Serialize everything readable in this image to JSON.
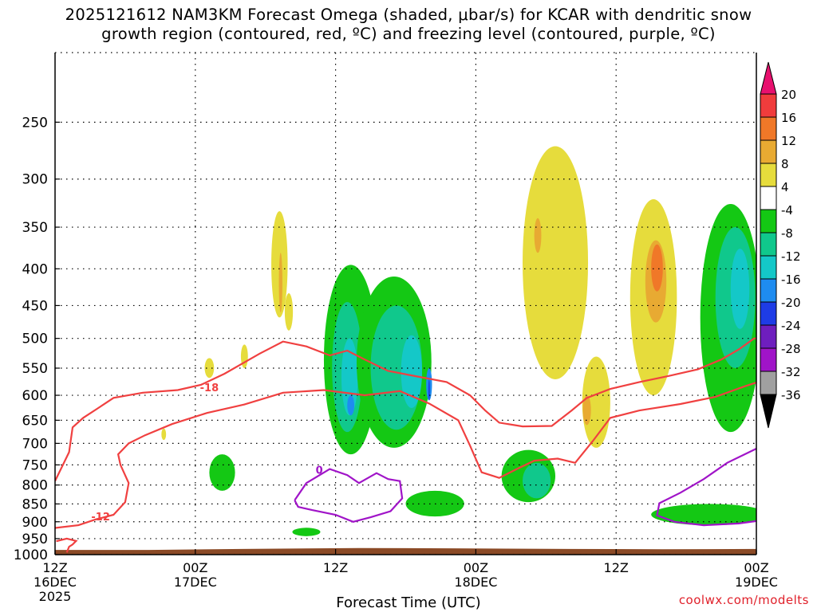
{
  "title": {
    "line1": "2025121612 NAM3KM Forecast Omega (shaded, μbar/s) for KCAR with dendritic snow",
    "line2": "growth region (contoured, red, ºC) and freezing level (contoured, purple, ºC)"
  },
  "credit": "coolwx.com/modelts",
  "chart_data": {
    "type": "heatmap",
    "xlabel": "Forecast Time (UTC)",
    "ylabel": "",
    "x_ticks": [
      {
        "hour": 0,
        "lines": [
          "12Z",
          "16DEC",
          "2025"
        ]
      },
      {
        "hour": 12,
        "lines": [
          "00Z",
          "17DEC"
        ]
      },
      {
        "hour": 24,
        "lines": [
          "12Z"
        ]
      },
      {
        "hour": 36,
        "lines": [
          "00Z",
          "18DEC"
        ]
      },
      {
        "hour": 48,
        "lines": [
          "12Z"
        ]
      },
      {
        "hour": 60,
        "lines": [
          "00Z",
          "19DEC"
        ]
      }
    ],
    "xlim": [
      0,
      60
    ],
    "y_ticks": [
      250,
      300,
      350,
      400,
      450,
      500,
      550,
      600,
      650,
      700,
      750,
      800,
      850,
      900,
      950,
      1000
    ],
    "ylim": [
      200,
      1000
    ],
    "y_scale": "log-pressure",
    "grid": true,
    "colorbar": {
      "labels": [
        "20",
        "16",
        "12",
        "8",
        "4",
        "-4",
        "-8",
        "-12",
        "-16",
        "-20",
        "-24",
        "-28",
        "-32",
        "-36"
      ],
      "bins": [
        {
          "lo": 20,
          "hi": null,
          "color": "#e8106e"
        },
        {
          "lo": 16,
          "hi": 20,
          "color": "#f03c3c"
        },
        {
          "lo": 12,
          "hi": 16,
          "color": "#f07828"
        },
        {
          "lo": 8,
          "hi": 12,
          "color": "#e8aa32"
        },
        {
          "lo": 4,
          "hi": 8,
          "color": "#e6dc3c"
        },
        {
          "lo": -4,
          "hi": 4,
          "color": "#ffffff"
        },
        {
          "lo": -8,
          "hi": -4,
          "color": "#14c814"
        },
        {
          "lo": -12,
          "hi": -8,
          "color": "#10c88c"
        },
        {
          "lo": -16,
          "hi": -12,
          "color": "#14c8c8"
        },
        {
          "lo": -20,
          "hi": -16,
          "color": "#1e8cf0"
        },
        {
          "lo": -24,
          "hi": -20,
          "color": "#1e3ce6"
        },
        {
          "lo": -28,
          "hi": -24,
          "color": "#6e1ebe"
        },
        {
          "lo": -32,
          "hi": -28,
          "color": "#a014c8"
        },
        {
          "lo": -36,
          "hi": -32,
          "color": "#a0a0a0"
        },
        {
          "lo": null,
          "hi": -36,
          "color": "#000000"
        }
      ]
    },
    "omega_features": [
      {
        "color": "#e6dc3c",
        "t": 19.2,
        "p": 400,
        "dt": 0.7,
        "dp": 135
      },
      {
        "color": "#e8aa32",
        "t": 19.3,
        "p": 420,
        "dt": 0.15,
        "dp": 80
      },
      {
        "color": "#e6dc3c",
        "t": 20.0,
        "p": 460,
        "dt": 0.35,
        "dp": 55
      },
      {
        "color": "#e6dc3c",
        "t": 16.2,
        "p": 530,
        "dt": 0.3,
        "dp": 40
      },
      {
        "color": "#e6dc3c",
        "t": 13.2,
        "p": 550,
        "dt": 0.4,
        "dp": 35
      },
      {
        "color": "#e6dc3c",
        "t": 9.3,
        "p": 680,
        "dt": 0.2,
        "dp": 25
      },
      {
        "color": "#14c814",
        "t": 14.3,
        "p": 770,
        "dt": 1.1,
        "dp": 90
      },
      {
        "color": "#14c814",
        "t": 21.5,
        "p": 930,
        "dt": 1.2,
        "dp": 25
      },
      {
        "color": "#14c814",
        "t": 25.3,
        "p": 560,
        "dt": 2.3,
        "dp": 330
      },
      {
        "color": "#10c88c",
        "t": 25.0,
        "p": 560,
        "dt": 1.3,
        "dp": 230
      },
      {
        "color": "#14c8c8",
        "t": 25.2,
        "p": 570,
        "dt": 0.7,
        "dp": 140
      },
      {
        "color": "#1e8cf0",
        "t": 25.3,
        "p": 620,
        "dt": 0.3,
        "dp": 40
      },
      {
        "color": "#14c814",
        "t": 29.0,
        "p": 560,
        "dt": 3.2,
        "dp": 300
      },
      {
        "color": "#10c88c",
        "t": 29.2,
        "p": 560,
        "dt": 2.2,
        "dp": 220
      },
      {
        "color": "#14c8c8",
        "t": 30.5,
        "p": 560,
        "dt": 0.9,
        "dp": 130
      },
      {
        "color": "#1e8cf0",
        "t": 32.0,
        "p": 580,
        "dt": 0.25,
        "dp": 60
      },
      {
        "color": "#1e3ce6",
        "t": 32.0,
        "p": 590,
        "dt": 0.07,
        "dp": 40
      },
      {
        "color": "#14c814",
        "t": 32.5,
        "p": 850,
        "dt": 2.5,
        "dp": 70
      },
      {
        "color": "#14c814",
        "t": 40.5,
        "p": 780,
        "dt": 2.3,
        "dp": 130
      },
      {
        "color": "#10c88c",
        "t": 41.2,
        "p": 790,
        "dt": 1.2,
        "dp": 90
      },
      {
        "color": "#e6dc3c",
        "t": 42.8,
        "p": 420,
        "dt": 2.8,
        "dp": 300
      },
      {
        "color": "#e8aa32",
        "t": 41.3,
        "p": 360,
        "dt": 0.3,
        "dp": 40
      },
      {
        "color": "#e6dc3c",
        "t": 46.3,
        "p": 620,
        "dt": 1.2,
        "dp": 180
      },
      {
        "color": "#e8aa32",
        "t": 45.5,
        "p": 630,
        "dt": 0.35,
        "dp": 60
      },
      {
        "color": "#e6dc3c",
        "t": 51.2,
        "p": 460,
        "dt": 2.0,
        "dp": 280
      },
      {
        "color": "#e8aa32",
        "t": 51.4,
        "p": 420,
        "dt": 0.9,
        "dp": 110
      },
      {
        "color": "#f07828",
        "t": 51.5,
        "p": 400,
        "dt": 0.5,
        "dp": 60
      },
      {
        "color": "#14c814",
        "t": 57.8,
        "p": 500,
        "dt": 2.6,
        "dp": 350
      },
      {
        "color": "#10c88c",
        "t": 58.2,
        "p": 450,
        "dt": 1.7,
        "dp": 200
      },
      {
        "color": "#14c8c8",
        "t": 58.6,
        "p": 430,
        "dt": 0.8,
        "dp": 110
      },
      {
        "color": "#14c814",
        "t": 56.0,
        "p": 880,
        "dt": 5.0,
        "dp": 60
      }
    ],
    "temperature_contours": [
      {
        "label": "-18",
        "color": "#f04040",
        "label_at": {
          "t": 13.2,
          "p": 585
        },
        "points": [
          [
            0,
            790
          ],
          [
            1.2,
            720
          ],
          [
            1.5,
            665
          ],
          [
            2.4,
            645
          ],
          [
            3.7,
            625
          ],
          [
            5.0,
            605
          ],
          [
            7.5,
            595
          ],
          [
            10.5,
            590
          ],
          [
            12.5,
            580
          ],
          [
            14.5,
            560
          ],
          [
            17.5,
            525
          ],
          [
            19.5,
            505
          ],
          [
            21.5,
            513
          ],
          [
            23.5,
            528
          ],
          [
            25.0,
            520
          ],
          [
            26.5,
            535
          ],
          [
            28.5,
            555
          ],
          [
            31.0,
            565
          ],
          [
            33.5,
            575
          ],
          [
            35.5,
            600
          ],
          [
            36.8,
            630
          ],
          [
            38.0,
            655
          ],
          [
            40.0,
            663
          ],
          [
            42.5,
            662
          ],
          [
            44.2,
            630
          ],
          [
            45.5,
            605
          ],
          [
            47.5,
            588
          ],
          [
            50.0,
            575
          ],
          [
            52.5,
            564
          ],
          [
            55.0,
            552
          ],
          [
            57.0,
            535
          ],
          [
            58.5,
            518
          ],
          [
            59.8,
            500
          ],
          [
            60,
            500
          ]
        ]
      },
      {
        "label": "-12",
        "color": "#f04040",
        "label_at": {
          "t": 3.9,
          "p": 885
        },
        "points": [
          [
            0,
            918
          ],
          [
            2.0,
            910
          ],
          [
            3.5,
            893
          ],
          [
            5.0,
            880
          ],
          [
            6.0,
            845
          ],
          [
            6.3,
            795
          ],
          [
            5.6,
            750
          ],
          [
            5.4,
            725
          ],
          [
            6.3,
            700
          ],
          [
            7.7,
            682
          ],
          [
            10.0,
            658
          ],
          [
            13.0,
            635
          ],
          [
            16.2,
            618
          ],
          [
            19.5,
            595
          ],
          [
            23.0,
            590
          ],
          [
            26.5,
            600
          ],
          [
            29.5,
            592
          ],
          [
            32.0,
            616
          ],
          [
            34.5,
            650
          ],
          [
            35.5,
            705
          ],
          [
            36.5,
            768
          ],
          [
            38.0,
            782
          ],
          [
            39.5,
            760
          ],
          [
            41.0,
            740
          ],
          [
            43.0,
            735
          ],
          [
            44.5,
            745
          ],
          [
            46.0,
            695
          ],
          [
            47.5,
            645
          ],
          [
            50.0,
            630
          ],
          [
            53.5,
            617
          ],
          [
            56.5,
            603
          ],
          [
            59.0,
            583
          ],
          [
            60,
            576
          ]
        ]
      }
    ],
    "extra_contours": [
      {
        "color": "#f04040",
        "points": [
          [
            0.1,
            958
          ],
          [
            1.0,
            950
          ],
          [
            1.8,
            957
          ],
          [
            1.5,
            968
          ],
          [
            1.2,
            975
          ],
          [
            1.0,
            993
          ]
        ]
      }
    ],
    "freezing_contours": [
      {
        "label": "0",
        "color": "#a014c8",
        "label_at": {
          "t": 22.6,
          "p": 762
        },
        "points": [
          [
            20.5,
            840
          ],
          [
            21.5,
            795
          ],
          [
            23.5,
            760
          ],
          [
            25.0,
            775
          ],
          [
            26.0,
            795
          ],
          [
            27.5,
            770
          ],
          [
            28.5,
            785
          ],
          [
            29.5,
            790
          ],
          [
            29.7,
            835
          ],
          [
            28.7,
            870
          ],
          [
            27.0,
            887
          ],
          [
            25.5,
            900
          ],
          [
            24.0,
            880
          ],
          [
            22.0,
            867
          ],
          [
            20.8,
            858
          ],
          [
            20.5,
            840
          ]
        ]
      },
      {
        "color": "#a014c8",
        "points": [
          [
            60,
            712
          ],
          [
            57.5,
            745
          ],
          [
            55.5,
            785
          ],
          [
            53.5,
            820
          ],
          [
            51.7,
            848
          ],
          [
            51.5,
            882
          ],
          [
            53.0,
            900
          ],
          [
            55.5,
            910
          ],
          [
            58.5,
            905
          ],
          [
            60,
            898
          ]
        ]
      }
    ],
    "surface_color": "#8b4a26"
  }
}
